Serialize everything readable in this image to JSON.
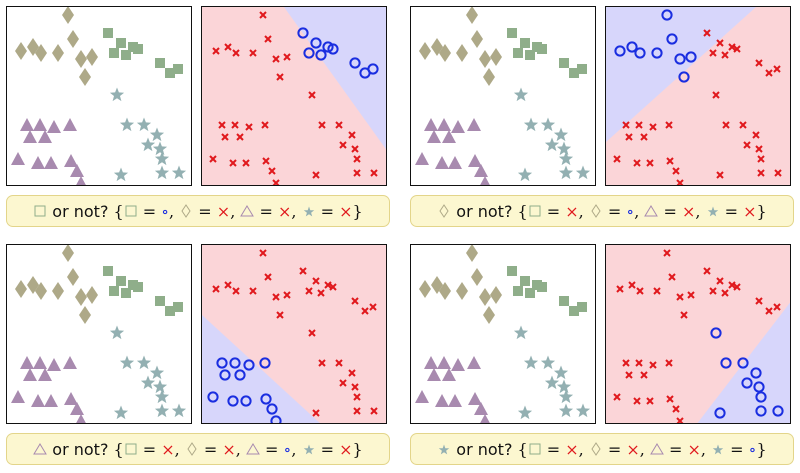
{
  "colors": {
    "square": "#8fae8a",
    "diamond": "#aea988",
    "triangle": "#a88aaf",
    "star": "#93b0b2",
    "positive_marker": "#1a2ee0",
    "negative_marker": "#e0191d",
    "positive_region": "#d7d6fb",
    "negative_region": "#fbd5d8"
  },
  "panels": [
    {
      "target_shape": "square",
      "caption_text": "or not?",
      "labels": {
        "square": "∘",
        "diamond": "×",
        "triangle": "×",
        "star": "×"
      }
    },
    {
      "target_shape": "diamond",
      "caption_text": "or not?",
      "labels": {
        "square": "×",
        "diamond": "∘",
        "triangle": "×",
        "star": "×"
      }
    },
    {
      "target_shape": "triangle",
      "caption_text": "or not?",
      "labels": {
        "square": "×",
        "diamond": "×",
        "triangle": "∘",
        "star": "×"
      }
    },
    {
      "target_shape": "star",
      "caption_text": "or not?",
      "labels": {
        "square": "×",
        "diamond": "×",
        "triangle": "×",
        "star": "∘"
      }
    }
  ],
  "math": {
    "open": "{",
    "close": "}",
    "eq": "=",
    "comma": ","
  }
}
